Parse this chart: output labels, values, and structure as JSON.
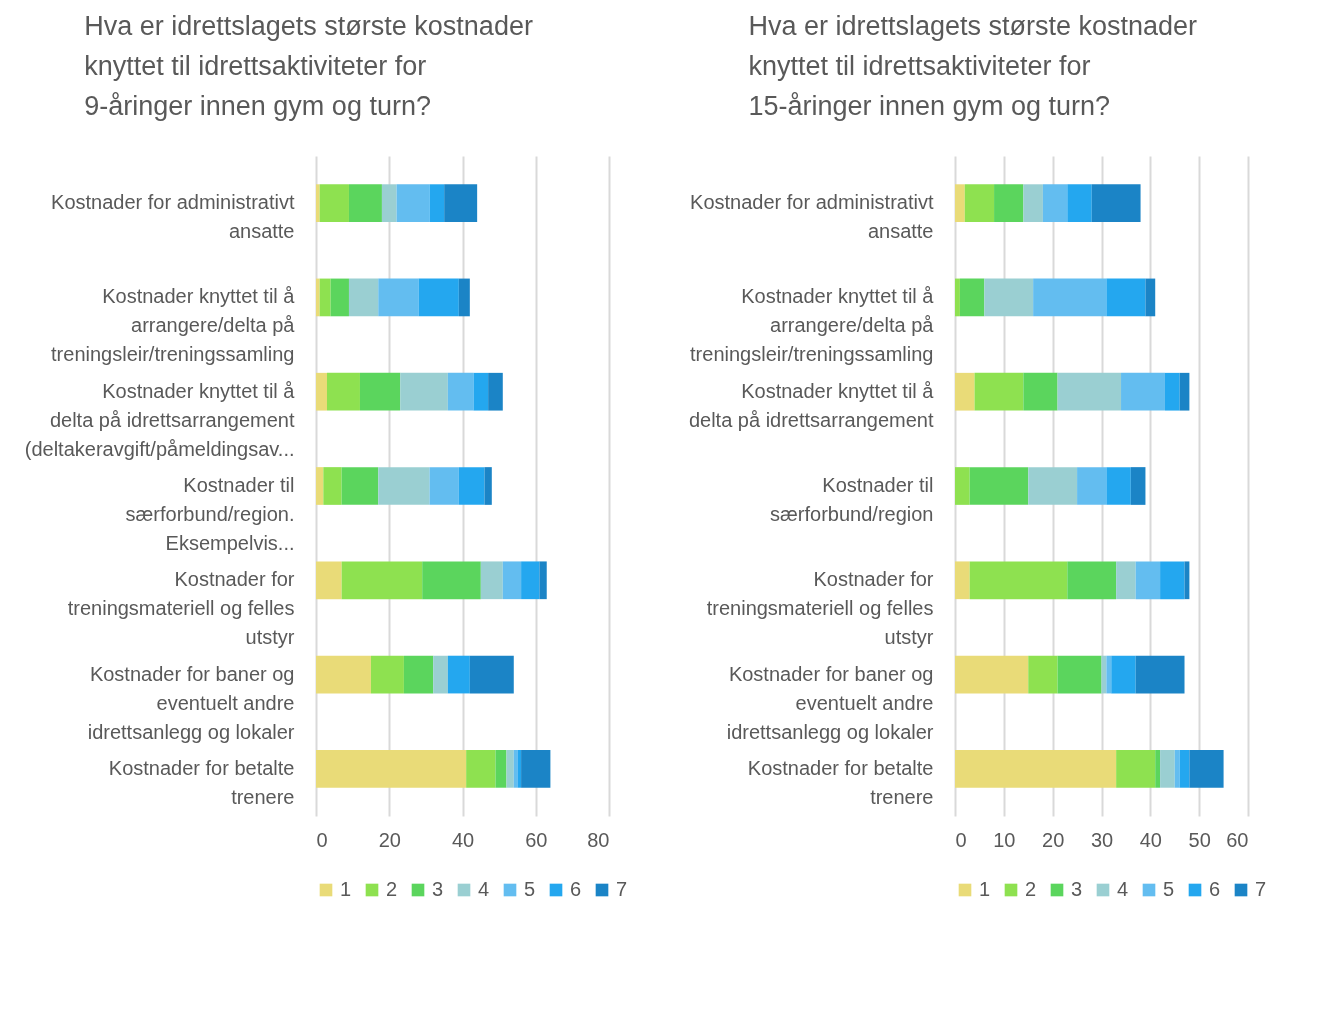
{
  "chart_data": [
    {
      "type": "bar",
      "orientation": "horizontal",
      "stacked": true,
      "title": "Hva er idrettslagets største kostnader knyttet til idrettsaktiviteter for 9-åringer innen gym og turn?",
      "categories": [
        "Kostnader for administrativt ansatte",
        "Kostnader knyttet til å arrangere/delta på treningsleir/treningssamling",
        "Kostnader knyttet til å delta på idrettsarrangement (deltakeravgift/påmeldingsav...",
        "Kostnader til særforbund/region. Eksempelvis...",
        "Kostnader for treningsmateriell og felles utstyr",
        "Kostnader for baner og eventuelt andre idrettsanlegg og lokaler",
        "Kostnader for betalte trenere"
      ],
      "series": [
        {
          "name": "1",
          "color": "#e9db78",
          "values": [
            1,
            1,
            3,
            2,
            7,
            15,
            41
          ]
        },
        {
          "name": "2",
          "color": "#8ee150",
          "values": [
            8,
            3,
            9,
            5,
            22,
            9,
            8
          ]
        },
        {
          "name": "3",
          "color": "#5bd55d",
          "values": [
            9,
            5,
            11,
            10,
            16,
            8,
            3
          ]
        },
        {
          "name": "4",
          "color": "#9acfd2",
          "values": [
            4,
            8,
            13,
            14,
            6,
            4,
            2
          ]
        },
        {
          "name": "5",
          "color": "#63bdf0",
          "values": [
            9,
            11,
            7,
            8,
            5,
            0,
            1
          ]
        },
        {
          "name": "6",
          "color": "#24a7ef",
          "values": [
            4,
            11,
            4,
            7,
            5,
            6,
            1
          ]
        },
        {
          "name": "7",
          "color": "#1b84c6",
          "values": [
            9,
            3,
            4,
            2,
            2,
            12,
            8
          ]
        }
      ],
      "xlim": [
        0,
        80
      ],
      "xticks": [
        0,
        20,
        40,
        60,
        80
      ],
      "grid": "x",
      "legend": "bottom"
    },
    {
      "type": "bar",
      "orientation": "horizontal",
      "stacked": true,
      "title": "Hva er idrettslagets største kostnader knyttet til idrettsaktiviteter for 15-åringer innen gym og turn?",
      "categories": [
        "Kostnader for administrativt ansatte",
        "Kostnader knyttet til å arrangere/delta på treningsleir/treningssamling",
        "Kostnader knyttet til å delta på idrettsarrangement",
        "Kostnader til særforbund/region",
        "Kostnader for treningsmateriell og felles utstyr",
        "Kostnader for baner og eventuelt andre idrettsanlegg og lokaler",
        "Kostnader for betalte trenere"
      ],
      "series": [
        {
          "name": "1",
          "color": "#e9db78",
          "values": [
            2,
            0,
            4,
            0,
            3,
            15,
            33
          ]
        },
        {
          "name": "2",
          "color": "#8ee150",
          "values": [
            6,
            1,
            10,
            3,
            20,
            6,
            8
          ]
        },
        {
          "name": "3",
          "color": "#5bd55d",
          "values": [
            6,
            5,
            7,
            12,
            10,
            9,
            1
          ]
        },
        {
          "name": "4",
          "color": "#9acfd2",
          "values": [
            4,
            10,
            13,
            10,
            4,
            1,
            3
          ]
        },
        {
          "name": "5",
          "color": "#63bdf0",
          "values": [
            5,
            15,
            9,
            6,
            5,
            1,
            1
          ]
        },
        {
          "name": "6",
          "color": "#24a7ef",
          "values": [
            5,
            8,
            3,
            5,
            5,
            5,
            2
          ]
        },
        {
          "name": "7",
          "color": "#1b84c6",
          "values": [
            10,
            2,
            2,
            3,
            1,
            10,
            7
          ]
        }
      ],
      "xlim": [
        0,
        60
      ],
      "xticks": [
        0,
        10,
        20,
        30,
        40,
        50,
        60
      ],
      "grid": "x",
      "legend": "bottom"
    }
  ]
}
